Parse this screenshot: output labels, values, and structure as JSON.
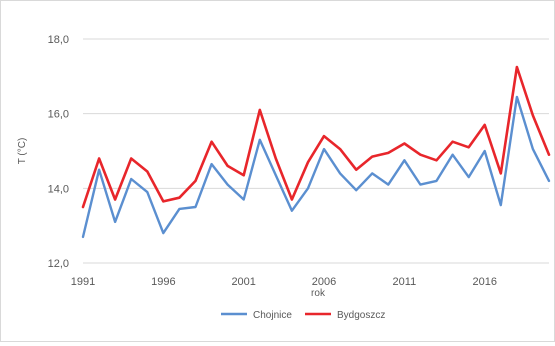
{
  "chart_data": {
    "type": "line",
    "title": "",
    "xlabel": "rok",
    "ylabel": "T (°C)",
    "x": [
      1991,
      1992,
      1993,
      1994,
      1995,
      1996,
      1997,
      1998,
      1999,
      2000,
      2001,
      2002,
      2003,
      2004,
      2005,
      2006,
      2007,
      2008,
      2009,
      2010,
      2011,
      2012,
      2013,
      2014,
      2015,
      2016,
      2017,
      2018,
      2019,
      2020
    ],
    "xlim": [
      1991,
      2020
    ],
    "ylim": [
      12.0,
      18.0
    ],
    "x_ticks": [
      "1991",
      "1996",
      "2001",
      "2006",
      "2011",
      "2016"
    ],
    "y_ticks": [
      "12,0",
      "14,0",
      "16,0",
      "18,0"
    ],
    "grid": "horizontal",
    "legend_position": "bottom",
    "series": [
      {
        "name": "Chojnice",
        "color": "#5b8fd0",
        "values": [
          12.7,
          14.5,
          13.1,
          14.25,
          13.9,
          12.8,
          13.45,
          13.5,
          14.65,
          14.1,
          13.7,
          15.3,
          14.35,
          13.4,
          14.0,
          15.05,
          14.4,
          13.95,
          14.4,
          14.1,
          14.75,
          14.1,
          14.2,
          14.9,
          14.3,
          15.0,
          13.55,
          16.45,
          15.05,
          14.2
        ]
      },
      {
        "name": "Bydgoszcz",
        "color": "#e8262b",
        "values": [
          13.5,
          14.8,
          13.7,
          14.8,
          14.45,
          13.65,
          13.75,
          14.2,
          15.25,
          14.6,
          14.35,
          16.1,
          14.8,
          13.7,
          14.7,
          15.4,
          15.05,
          14.5,
          14.85,
          14.95,
          15.2,
          14.9,
          14.75,
          15.25,
          15.1,
          15.7,
          14.4,
          17.25,
          15.95,
          14.9
        ]
      }
    ]
  }
}
